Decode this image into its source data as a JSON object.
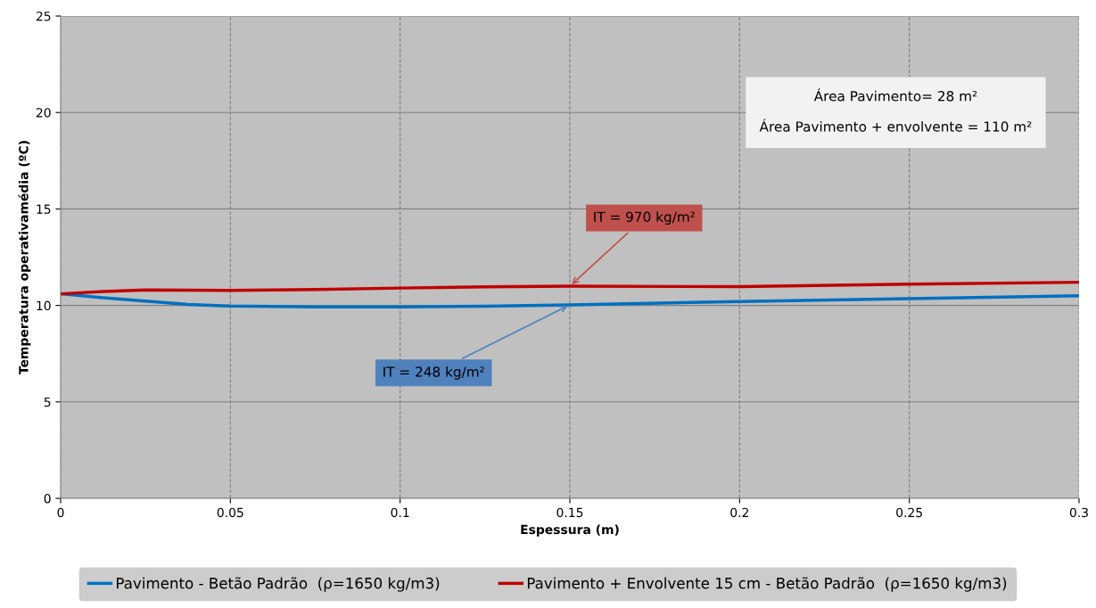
{
  "chart_data": {
    "type": "line",
    "xlabel": "Espessura (m)",
    "ylabel": "Temperatura operativamédia (ºC)",
    "x": [
      0,
      0.0125,
      0.025,
      0.0375,
      0.05,
      0.075,
      0.1,
      0.125,
      0.15,
      0.2,
      0.25,
      0.3
    ],
    "series": [
      {
        "name": "Pavimento - Betão Padrão  (ρ=1650 kg/m3)",
        "color": "#0070c0",
        "values": [
          10.6,
          10.4,
          10.22,
          10.05,
          9.97,
          9.92,
          9.92,
          9.96,
          10.03,
          10.2,
          10.35,
          10.5
        ]
      },
      {
        "name": "Pavimento + Envolvente 15 cm - Betão Padrão  (ρ=1650 kg/m3)",
        "color": "#c00000",
        "values": [
          10.6,
          10.72,
          10.8,
          10.79,
          10.78,
          10.82,
          10.9,
          10.96,
          11.0,
          10.97,
          11.1,
          11.2
        ]
      }
    ],
    "xlim": [
      0,
      0.3
    ],
    "xticks": [
      0,
      0.05,
      0.1,
      0.15,
      0.2,
      0.25,
      0.3
    ],
    "ylim": [
      0,
      25
    ],
    "yticks": [
      0,
      5,
      10,
      15,
      20,
      25
    ],
    "grid": true,
    "legend": "bottom",
    "marker": "none",
    "line_style": "solid",
    "annotations": [
      {
        "text": "IT = 970 kg/m²",
        "x": 0.15,
        "y": 11.0
      },
      {
        "text": "IT = 248 kg/m²",
        "x": 0.15,
        "y": 10.03
      },
      "Área Pavimento= 28 m²",
      "Área Pavimento + envolvente = 110 m²"
    ]
  }
}
